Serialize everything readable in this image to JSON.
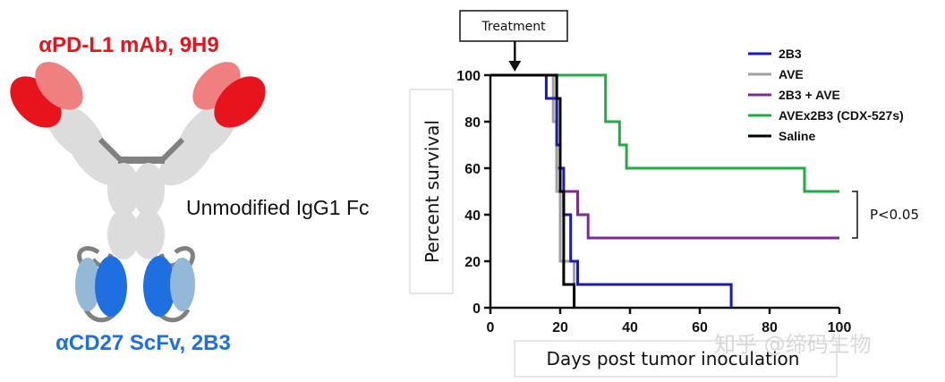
{
  "diagram": {
    "top_label": "αPD-L1 mAb, 9H9",
    "fc_label": "Unmodified IgG1 Fc",
    "bottom_label": "αCD27 ScFv, 2B3",
    "colors": {
      "red_dark": "#e8141c",
      "red_light": "#f08080",
      "blue_dark": "#1e6fe0",
      "blue_light": "#94b8d8",
      "gray_light": "#dcdcdc",
      "gray_dark": "#808080"
    }
  },
  "chart_data": {
    "type": "line",
    "subtype": "kaplan-meier-step",
    "xlabel": "Days post tumor inoculation",
    "ylabel": "Percent survival",
    "xlim": [
      0,
      100
    ],
    "ylim": [
      0,
      100
    ],
    "xticks": [
      0,
      20,
      40,
      60,
      80,
      100
    ],
    "yticks": [
      0,
      20,
      40,
      60,
      80,
      100
    ],
    "annotation": {
      "label": "Treatment",
      "x": 7
    },
    "significance": {
      "label": "P<0.05",
      "y_range": [
        30,
        50
      ]
    },
    "legend_position": "top-right",
    "series": [
      {
        "name": "2B3",
        "color": "#1a1ab4",
        "points": [
          [
            0,
            100
          ],
          [
            16,
            100
          ],
          [
            16,
            90
          ],
          [
            19,
            90
          ],
          [
            19,
            70
          ],
          [
            20,
            70
          ],
          [
            20,
            60
          ],
          [
            21,
            60
          ],
          [
            21,
            40
          ],
          [
            23,
            40
          ],
          [
            23,
            20
          ],
          [
            25,
            20
          ],
          [
            25,
            10
          ],
          [
            69,
            10
          ],
          [
            69,
            0
          ]
        ]
      },
      {
        "name": "AVE",
        "color": "#a0a0a0",
        "points": [
          [
            0,
            100
          ],
          [
            18,
            100
          ],
          [
            18,
            80
          ],
          [
            19,
            80
          ],
          [
            19,
            50
          ],
          [
            20,
            50
          ],
          [
            20,
            20
          ],
          [
            24,
            20
          ],
          [
            24,
            0
          ]
        ]
      },
      {
        "name": "2B3 + AVE",
        "color": "#7b2c8c",
        "points": [
          [
            0,
            100
          ],
          [
            19,
            100
          ],
          [
            19,
            60
          ],
          [
            20,
            60
          ],
          [
            20,
            50
          ],
          [
            25,
            50
          ],
          [
            25,
            40
          ],
          [
            28,
            40
          ],
          [
            28,
            30
          ],
          [
            100,
            30
          ]
        ]
      },
      {
        "name": "AVEx2B3 (CDX-527s)",
        "color": "#22aa44",
        "points": [
          [
            0,
            100
          ],
          [
            33,
            100
          ],
          [
            33,
            80
          ],
          [
            37,
            80
          ],
          [
            37,
            70
          ],
          [
            39,
            70
          ],
          [
            39,
            60
          ],
          [
            90,
            60
          ],
          [
            90,
            50
          ],
          [
            100,
            50
          ]
        ]
      },
      {
        "name": "Saline",
        "color": "#000000",
        "points": [
          [
            0,
            100
          ],
          [
            19,
            100
          ],
          [
            19,
            90
          ],
          [
            20,
            90
          ],
          [
            20,
            50
          ],
          [
            21,
            50
          ],
          [
            21,
            10
          ],
          [
            24,
            10
          ],
          [
            24,
            0
          ]
        ]
      }
    ]
  },
  "watermark": "知乎 @缔码生物"
}
